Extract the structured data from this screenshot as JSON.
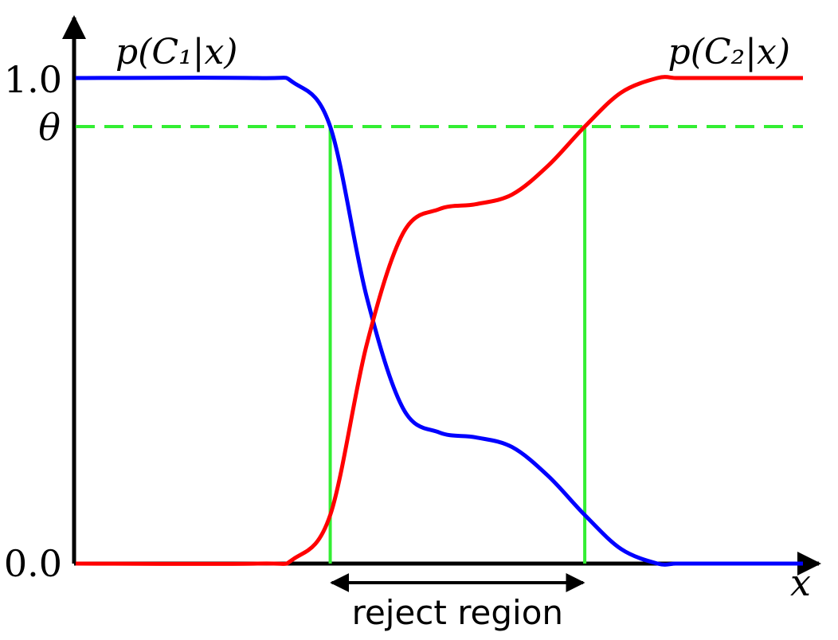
{
  "chart_data": {
    "type": "line",
    "xlabel": "x",
    "y_ticks": [
      "1.0",
      "θ",
      "0.0"
    ],
    "y_values": [
      1.0,
      0.9,
      0.0
    ],
    "theta": 0.9,
    "series": [
      {
        "name": "p(C₁|x)",
        "color": "#0000ff",
        "x": [
          0.0,
          0.25,
          0.3,
          0.35,
          0.4,
          0.45,
          0.5,
          0.55,
          0.6,
          0.65,
          0.7,
          0.75,
          0.8,
          0.825,
          0.85,
          0.875,
          0.9,
          1.0
        ],
        "y": [
          1.0,
          1.0,
          0.99,
          0.9,
          0.55,
          0.32,
          0.27,
          0.26,
          0.24,
          0.18,
          0.1,
          0.03,
          0.0,
          0.0,
          0.0,
          0.0,
          0.0,
          0.0
        ]
      },
      {
        "name": "p(C₂|x)",
        "color": "#ff0000",
        "x": [
          0.0,
          0.25,
          0.3,
          0.35,
          0.4,
          0.45,
          0.5,
          0.55,
          0.6,
          0.65,
          0.7,
          0.75,
          0.8,
          0.825,
          0.85,
          0.875,
          0.9,
          1.0
        ],
        "y": [
          0.0,
          0.0,
          0.01,
          0.1,
          0.45,
          0.68,
          0.73,
          0.74,
          0.76,
          0.82,
          0.9,
          0.97,
          1.0,
          1.0,
          1.0,
          1.0,
          1.0,
          1.0
        ]
      }
    ],
    "reject_region": {
      "x_start": 0.35,
      "x_end": 0.7,
      "label": "reject region"
    },
    "colors": {
      "threshold": "#33ee33",
      "axes": "#000000"
    }
  }
}
